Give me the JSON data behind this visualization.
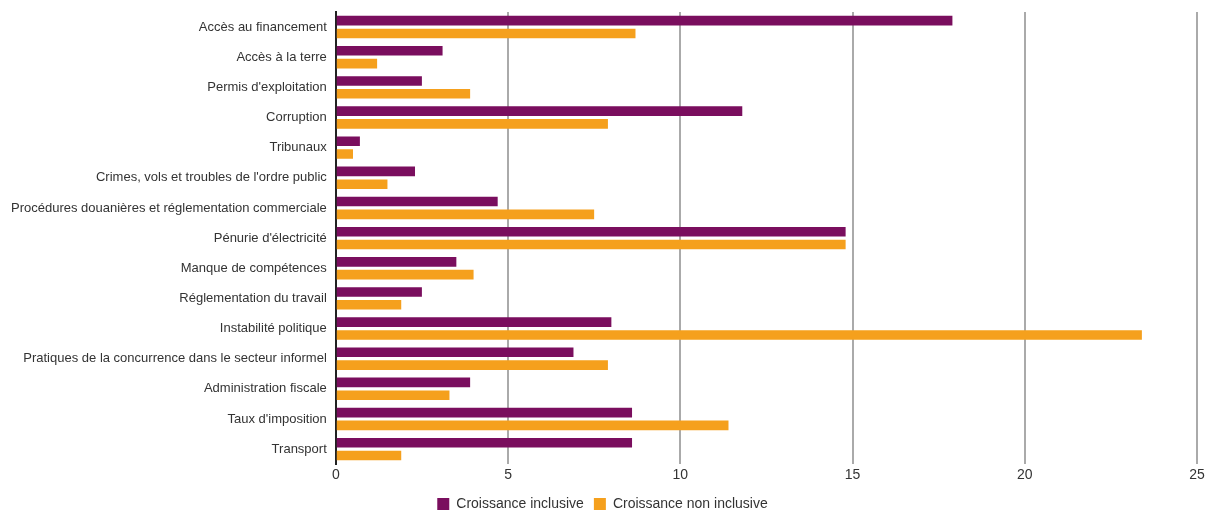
{
  "chart_data": {
    "type": "bar",
    "orientation": "horizontal",
    "categories": [
      "Accès au financement",
      "Accès à la terre",
      "Permis d'exploitation",
      "Corruption",
      "Tribunaux",
      "Crimes, vols et troubles de l'ordre public",
      "Procédures douanières et réglementation commerciale",
      "Pénurie d'électricité",
      "Manque de compétences",
      "Réglementation du travail",
      "Instabilité politique",
      "Pratiques de la concurrence dans le secteur informel",
      "Administration fiscale",
      "Taux d'imposition",
      "Transport"
    ],
    "series": [
      {
        "name": "Croissance inclusive",
        "color": "#7a0e5e",
        "values": [
          17.9,
          3.1,
          2.5,
          11.8,
          0.7,
          2.3,
          4.7,
          14.8,
          3.5,
          2.5,
          8.0,
          6.9,
          3.9,
          8.6,
          8.6
        ]
      },
      {
        "name": "Croissance non inclusive",
        "color": "#f5a01d",
        "values": [
          8.7,
          1.2,
          3.9,
          7.9,
          0.5,
          1.5,
          7.5,
          14.8,
          4.0,
          1.9,
          23.4,
          7.9,
          3.3,
          11.4,
          1.9
        ]
      }
    ],
    "xlim": [
      0,
      25
    ],
    "xticks": [
      0,
      5,
      10,
      15,
      20,
      25
    ],
    "grid": "x",
    "legend": "bottom"
  }
}
